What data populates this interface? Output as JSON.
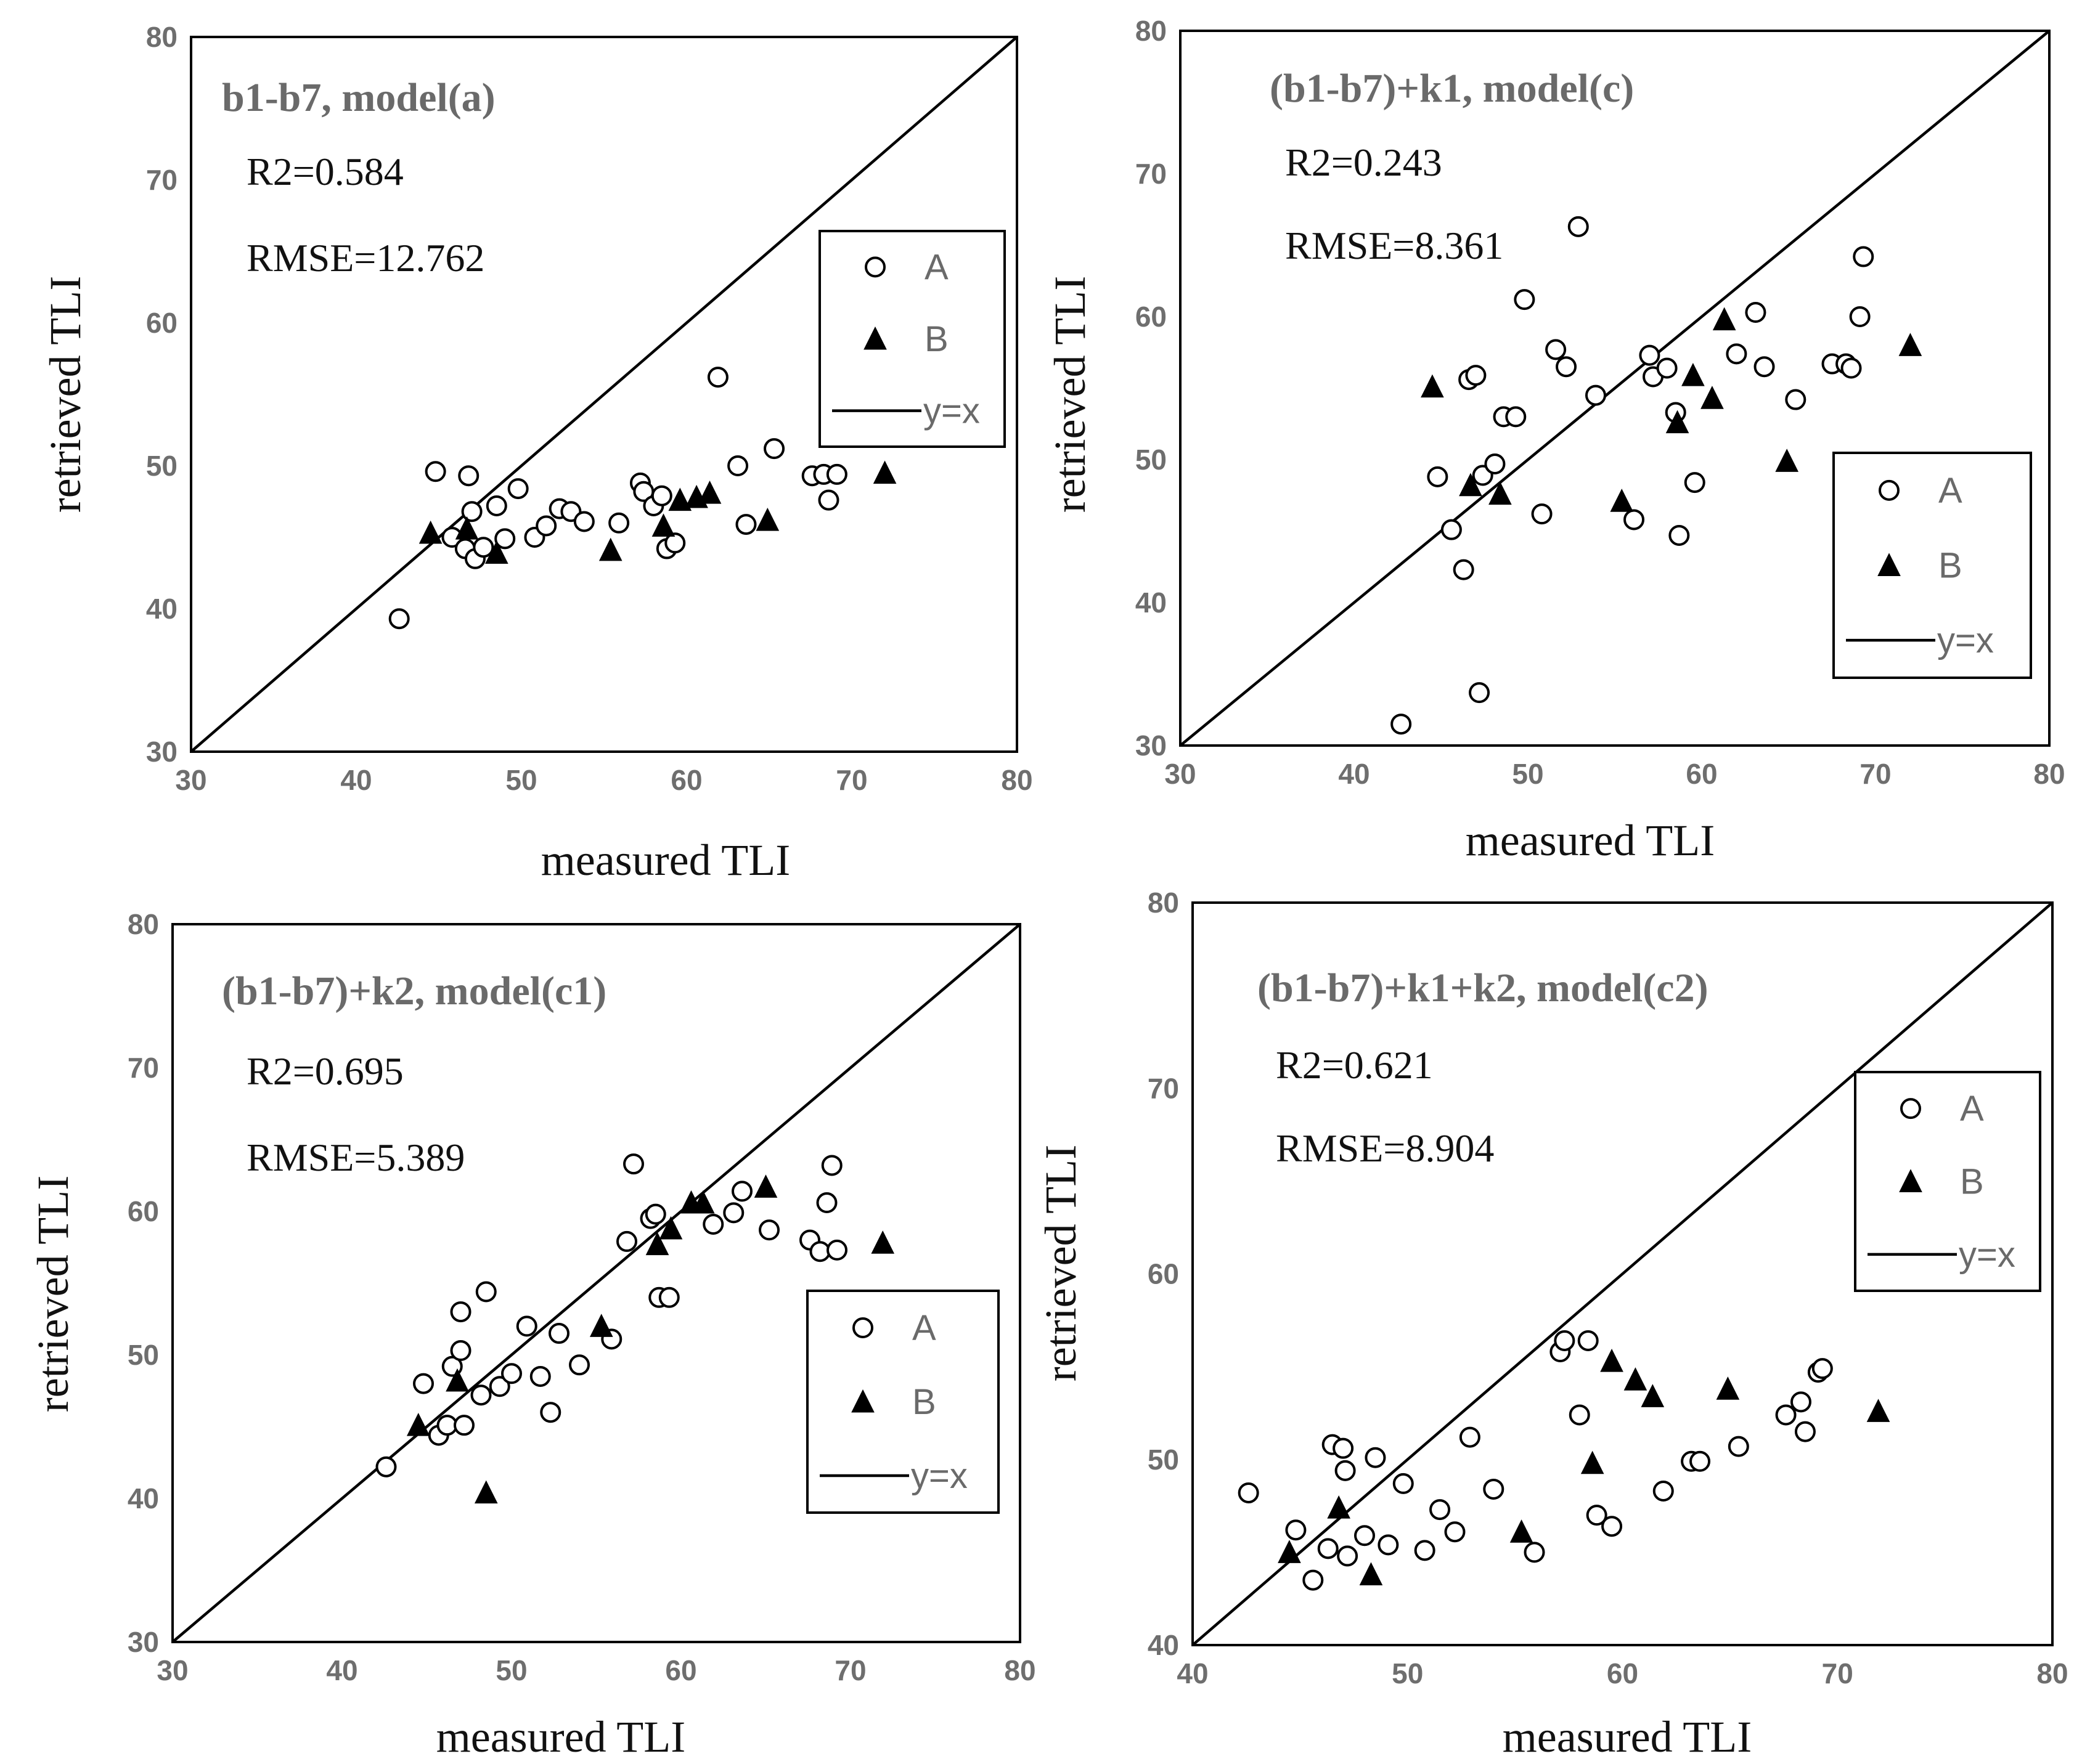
{
  "chart_data": [
    {
      "type": "scatter",
      "title": "b1-b7, model(a)",
      "r2_label": "R2=0.584",
      "rmse_label": "RMSE=12.762",
      "xlabel": "measured TLI",
      "ylabel": "retrieved TLI",
      "xlim": [
        30,
        80
      ],
      "ylim": [
        30,
        80
      ],
      "xticks": [
        "30",
        "40",
        "50",
        "60",
        "70",
        "80"
      ],
      "yticks": [
        "30",
        "40",
        "50",
        "60",
        "70",
        "80"
      ],
      "legend": {
        "a": "A",
        "b": "B",
        "line": "y=x"
      },
      "legend_position": "middle-right",
      "series": [
        {
          "name": "A",
          "marker": "open-circle",
          "points": [
            [
              42.6,
              39.3
            ],
            [
              44.8,
              49.6
            ],
            [
              45.8,
              45.0
            ],
            [
              46.6,
              44.2
            ],
            [
              46.8,
              49.3
            ],
            [
              47.0,
              46.8
            ],
            [
              47.2,
              43.5
            ],
            [
              47.7,
              44.3
            ],
            [
              48.5,
              47.2
            ],
            [
              49.0,
              44.9
            ],
            [
              49.8,
              48.4
            ],
            [
              50.8,
              45.0
            ],
            [
              51.5,
              45.8
            ],
            [
              52.3,
              47.0
            ],
            [
              53.0,
              46.8
            ],
            [
              53.8,
              46.1
            ],
            [
              55.9,
              46.0
            ],
            [
              57.2,
              48.8
            ],
            [
              57.4,
              48.2
            ],
            [
              58.0,
              47.2
            ],
            [
              58.5,
              47.9
            ],
            [
              58.8,
              44.2
            ],
            [
              59.3,
              44.6
            ],
            [
              61.9,
              56.2
            ],
            [
              63.1,
              50.0
            ],
            [
              63.6,
              45.9
            ],
            [
              65.3,
              51.2
            ],
            [
              67.6,
              49.3
            ],
            [
              68.3,
              49.4
            ],
            [
              68.6,
              47.6
            ],
            [
              69.1,
              49.4
            ]
          ]
        },
        {
          "name": "B",
          "marker": "filled-triangle",
          "points": [
            [
              44.5,
              45.3
            ],
            [
              46.7,
              45.6
            ],
            [
              48.5,
              43.9
            ],
            [
              55.4,
              44.1
            ],
            [
              58.6,
              45.8
            ],
            [
              59.6,
              47.6
            ],
            [
              60.6,
              47.8
            ],
            [
              61.4,
              48.1
            ],
            [
              64.9,
              46.2
            ],
            [
              72.0,
              49.5
            ]
          ]
        }
      ]
    },
    {
      "type": "scatter",
      "title": "(b1-b7)+k1, model(c)",
      "r2_label": "R2=0.243",
      "rmse_label": "RMSE=8.361",
      "xlabel": "measured TLI",
      "ylabel": "retrieved TLI",
      "xlim": [
        30,
        80
      ],
      "ylim": [
        30,
        80
      ],
      "xticks": [
        "30",
        "40",
        "50",
        "60",
        "70",
        "80"
      ],
      "yticks": [
        "30",
        "40",
        "50",
        "60",
        "70",
        "80"
      ],
      "legend": {
        "a": "A",
        "b": "B",
        "line": "y=x"
      },
      "legend_position": "right",
      "series": [
        {
          "name": "A",
          "marker": "open-circle",
          "points": [
            [
              42.7,
              31.5
            ],
            [
              44.8,
              48.8
            ],
            [
              45.6,
              45.1
            ],
            [
              46.3,
              42.3
            ],
            [
              46.6,
              55.6
            ],
            [
              47.0,
              55.9
            ],
            [
              47.2,
              33.7
            ],
            [
              47.4,
              48.9
            ],
            [
              48.1,
              49.7
            ],
            [
              48.6,
              53.0
            ],
            [
              49.3,
              53.0
            ],
            [
              49.8,
              61.2
            ],
            [
              50.8,
              46.2
            ],
            [
              51.6,
              57.7
            ],
            [
              52.2,
              56.5
            ],
            [
              52.9,
              66.3
            ],
            [
              53.9,
              54.5
            ],
            [
              56.1,
              45.8
            ],
            [
              57.0,
              57.3
            ],
            [
              57.2,
              55.8
            ],
            [
              58.0,
              56.4
            ],
            [
              58.5,
              53.3
            ],
            [
              58.7,
              44.7
            ],
            [
              59.6,
              48.4
            ],
            [
              62.0,
              57.4
            ],
            [
              63.1,
              60.3
            ],
            [
              63.6,
              56.5
            ],
            [
              65.4,
              54.2
            ],
            [
              67.5,
              56.7
            ],
            [
              68.3,
              56.7
            ],
            [
              68.6,
              56.4
            ],
            [
              69.1,
              60.0
            ],
            [
              69.3,
              64.2
            ]
          ]
        },
        {
          "name": "B",
          "marker": "filled-triangle",
          "points": [
            [
              44.5,
              55.1
            ],
            [
              46.7,
              48.2
            ],
            [
              48.4,
              47.6
            ],
            [
              55.4,
              47.1
            ],
            [
              58.6,
              52.6
            ],
            [
              59.5,
              55.9
            ],
            [
              60.6,
              54.3
            ],
            [
              61.3,
              59.8
            ],
            [
              64.9,
              49.9
            ],
            [
              72.0,
              58.0
            ]
          ]
        }
      ]
    },
    {
      "type": "scatter",
      "title": "(b1-b7)+k2, model(c1)",
      "r2_label": "R2=0.695",
      "rmse_label": "RMSE=5.389",
      "xlabel": "measured TLI",
      "ylabel": "retrieved TLI",
      "xlim": [
        30,
        80
      ],
      "ylim": [
        30,
        80
      ],
      "xticks": [
        "30",
        "40",
        "50",
        "60",
        "70",
        "80"
      ],
      "yticks": [
        "30",
        "40",
        "50",
        "60",
        "70",
        "80"
      ],
      "legend": {
        "a": "A",
        "b": "B",
        "line": "y=x"
      },
      "legend_position": "middle-right",
      "series": [
        {
          "name": "A",
          "marker": "open-circle",
          "points": [
            [
              42.6,
              42.2
            ],
            [
              44.8,
              48.0
            ],
            [
              45.7,
              44.4
            ],
            [
              46.2,
              45.1
            ],
            [
              46.5,
              49.2
            ],
            [
              47.0,
              50.3
            ],
            [
              47.0,
              53.0
            ],
            [
              47.2,
              45.1
            ],
            [
              48.2,
              47.2
            ],
            [
              48.5,
              54.4
            ],
            [
              49.3,
              47.8
            ],
            [
              50.0,
              48.7
            ],
            [
              50.9,
              52.0
            ],
            [
              51.7,
              48.5
            ],
            [
              52.3,
              46.0
            ],
            [
              52.8,
              51.5
            ],
            [
              54.0,
              49.3
            ],
            [
              55.9,
              51.1
            ],
            [
              56.8,
              57.9
            ],
            [
              57.2,
              63.3
            ],
            [
              58.2,
              59.5
            ],
            [
              58.5,
              59.8
            ],
            [
              58.7,
              54.0
            ],
            [
              59.3,
              54.0
            ],
            [
              61.9,
              59.1
            ],
            [
              63.1,
              59.9
            ],
            [
              63.6,
              61.4
            ],
            [
              65.2,
              58.7
            ],
            [
              67.6,
              58.0
            ],
            [
              68.2,
              57.2
            ],
            [
              68.6,
              60.6
            ],
            [
              68.9,
              63.2
            ],
            [
              69.2,
              57.3
            ]
          ]
        },
        {
          "name": "B",
          "marker": "filled-triangle",
          "points": [
            [
              44.5,
              45.1
            ],
            [
              46.8,
              48.2
            ],
            [
              48.5,
              40.4
            ],
            [
              55.3,
              52.0
            ],
            [
              58.6,
              57.7
            ],
            [
              59.4,
              58.8
            ],
            [
              60.6,
              60.6
            ],
            [
              61.3,
              60.6
            ],
            [
              65.0,
              61.7
            ],
            [
              71.9,
              57.8
            ]
          ]
        }
      ]
    },
    {
      "type": "scatter",
      "title": "(b1-b7)+k1+k2, model(c2)",
      "r2_label": "R2=0.621",
      "rmse_label": "RMSE=8.904",
      "xlabel": "measured TLI",
      "ylabel": "retrieved TLI",
      "xlim": [
        40,
        80
      ],
      "ylim": [
        40,
        80
      ],
      "xticks": [
        "40",
        "50",
        "60",
        "70",
        "80"
      ],
      "yticks": [
        "40",
        "50",
        "60",
        "70",
        "80"
      ],
      "legend": {
        "a": "A",
        "b": "B",
        "line": "y=x"
      },
      "legend_position": "right",
      "series": [
        {
          "name": "A",
          "marker": "open-circle",
          "points": [
            [
              42.6,
              48.2
            ],
            [
              44.8,
              46.2
            ],
            [
              45.6,
              43.5
            ],
            [
              46.3,
              45.2
            ],
            [
              46.5,
              50.8
            ],
            [
              47.0,
              50.6
            ],
            [
              47.1,
              49.4
            ],
            [
              47.2,
              44.8
            ],
            [
              48.0,
              45.9
            ],
            [
              48.5,
              50.1
            ],
            [
              49.1,
              45.4
            ],
            [
              49.8,
              48.7
            ],
            [
              50.8,
              45.1
            ],
            [
              51.5,
              47.3
            ],
            [
              52.2,
              46.1
            ],
            [
              52.9,
              51.2
            ],
            [
              54.0,
              48.4
            ],
            [
              55.9,
              45.0
            ],
            [
              57.1,
              55.8
            ],
            [
              57.3,
              56.4
            ],
            [
              58.0,
              52.4
            ],
            [
              58.4,
              56.4
            ],
            [
              58.8,
              47.0
            ],
            [
              59.5,
              46.4
            ],
            [
              61.9,
              48.3
            ],
            [
              63.2,
              49.9
            ],
            [
              63.6,
              49.9
            ],
            [
              65.4,
              50.7
            ],
            [
              67.6,
              52.4
            ],
            [
              68.3,
              53.1
            ],
            [
              68.5,
              51.5
            ],
            [
              69.1,
              54.7
            ],
            [
              69.3,
              54.9
            ]
          ]
        },
        {
          "name": "B",
          "marker": "filled-triangle",
          "points": [
            [
              44.5,
              45.0
            ],
            [
              46.8,
              47.4
            ],
            [
              48.3,
              43.8
            ],
            [
              55.3,
              46.1
            ],
            [
              58.6,
              49.8
            ],
            [
              59.5,
              55.3
            ],
            [
              60.6,
              54.3
            ],
            [
              61.4,
              53.4
            ],
            [
              64.9,
              53.8
            ],
            [
              71.9,
              52.6
            ]
          ]
        }
      ]
    }
  ]
}
